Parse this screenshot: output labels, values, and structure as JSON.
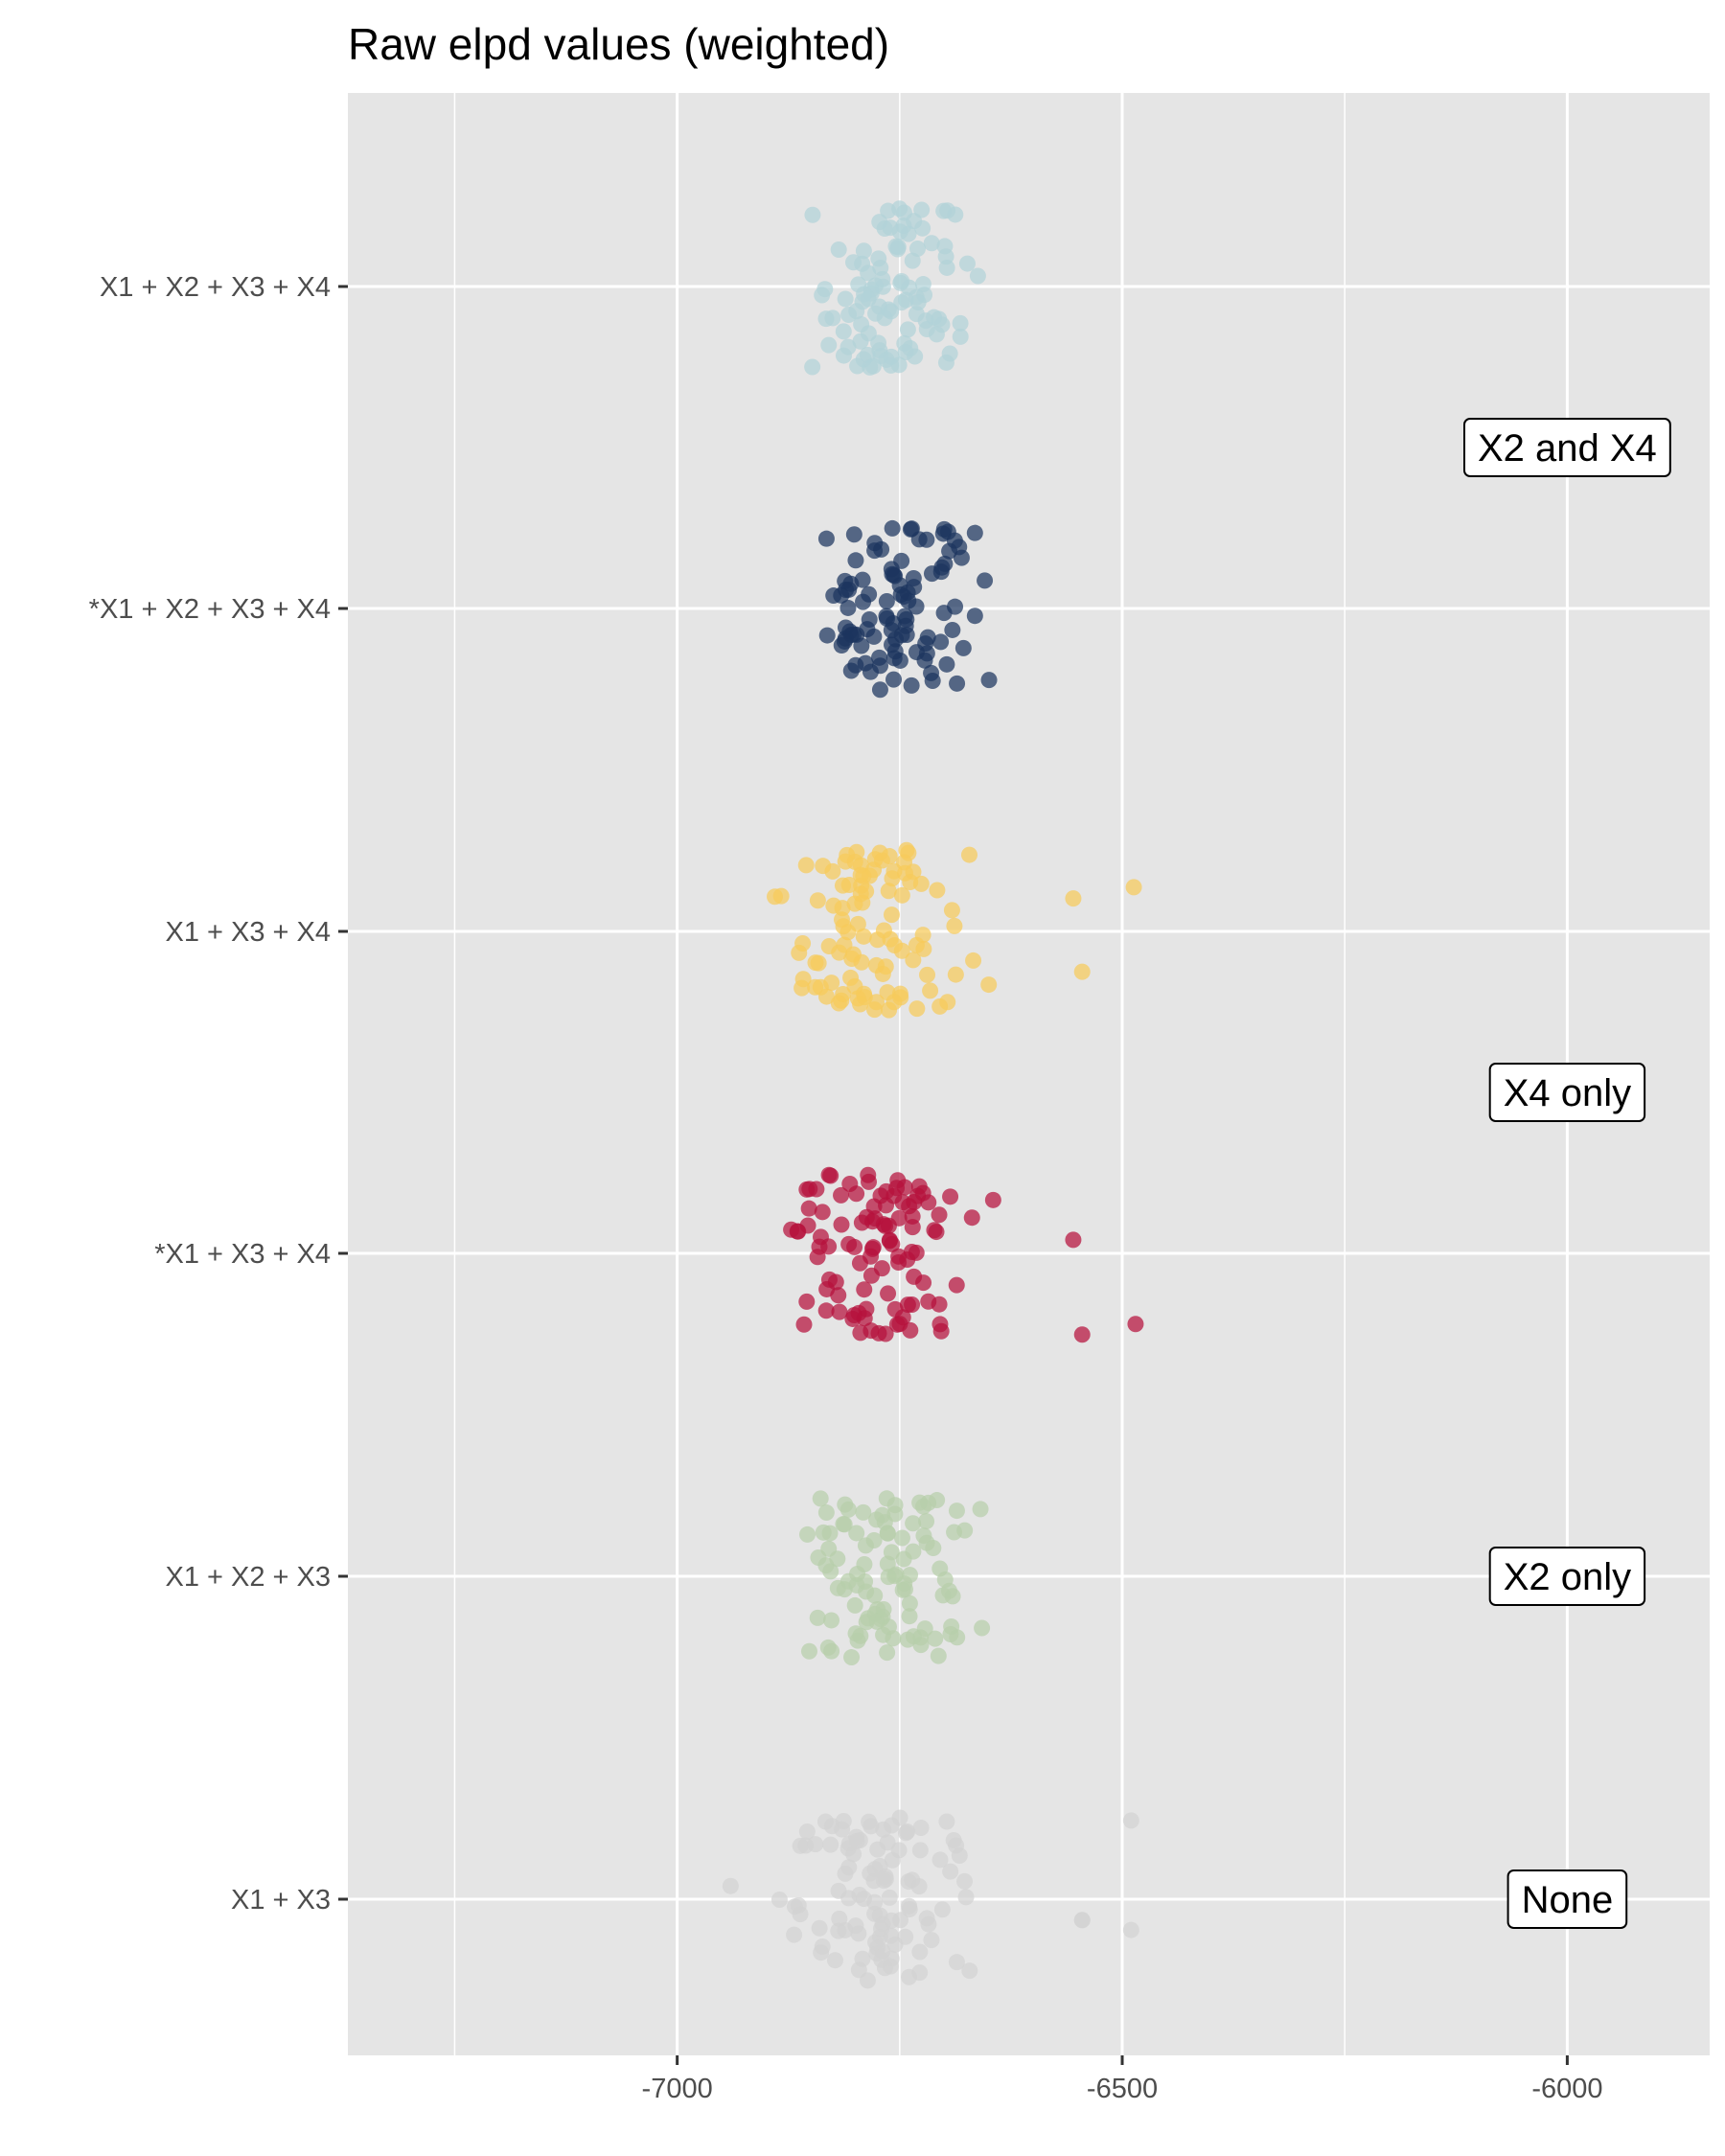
{
  "chart_data": {
    "type": "scatter",
    "title": "Raw elpd values (weighted)",
    "xlabel": "",
    "ylabel": "",
    "xlim": [
      -7370,
      -5840
    ],
    "x_ticks": [
      -7000,
      -6500,
      -6000
    ],
    "x_tick_labels": [
      "-7000",
      "-6500",
      "-6000"
    ],
    "x_minor_gridlines": [
      -7250,
      -6750,
      -6250,
      -5750
    ],
    "grid": true,
    "categories": [
      "X1 + X2 + X3 + X4",
      "*X1 + X2 + X3 + X4",
      "X1 + X3 + X4",
      "*X1 + X3 + X4",
      "X1 + X2 + X3",
      "X1 + X3"
    ],
    "series": [
      {
        "category": "X1 + X2 + X3 + X4",
        "color": "#b2d3d8",
        "x_range": [
          -6855,
          -6650
        ],
        "n": 100,
        "jitter_seed": 11,
        "outliers": []
      },
      {
        "category": "*X1 + X2 + X3 + X4",
        "color": "#1c355e",
        "x_range": [
          -6845,
          -6645
        ],
        "n": 100,
        "jitter_seed": 23,
        "outliers": []
      },
      {
        "category": "X1 + X3 + X4",
        "color": "#f7cb5a",
        "x_range": [
          -6900,
          -6660
        ],
        "n": 100,
        "jitter_seed": 37,
        "outliers": [
          -6650,
          -6487,
          -6555,
          -6545
        ]
      },
      {
        "category": "*X1 + X3 + X4",
        "color": "#b5103c",
        "x_range": [
          -6890,
          -6660
        ],
        "n": 100,
        "jitter_seed": 41,
        "outliers": [
          -6645,
          -6485,
          -6555,
          -6545
        ]
      },
      {
        "category": "X1 + X2 + X3",
        "color": "#b7cfaa",
        "x_range": [
          -6870,
          -6650
        ],
        "n": 100,
        "jitter_seed": 53,
        "outliers": []
      },
      {
        "category": "X1 + X3",
        "color": "#d3d3d3",
        "x_range": [
          -6890,
          -6660
        ],
        "n": 100,
        "jitter_seed": 67,
        "outliers": [
          -6940,
          -6490,
          -6490,
          -6545,
          -6545
        ]
      }
    ],
    "annotations": [
      {
        "text": "X2 and X4",
        "x": -6000,
        "between": [
          "X1 + X2 + X3 + X4",
          "*X1 + X2 + X3 + X4"
        ]
      },
      {
        "text": "X4 only",
        "x": -6000,
        "between": [
          "X1 + X3 + X4",
          "*X1 + X3 + X4"
        ]
      },
      {
        "text": "X2 only",
        "x": -6000,
        "at": "X1 + X2 + X3"
      },
      {
        "text": "None",
        "x": -6000,
        "at": "X1 + X3"
      }
    ],
    "panel_background": "#e5e5e5",
    "gridline_color": "#ffffff"
  }
}
